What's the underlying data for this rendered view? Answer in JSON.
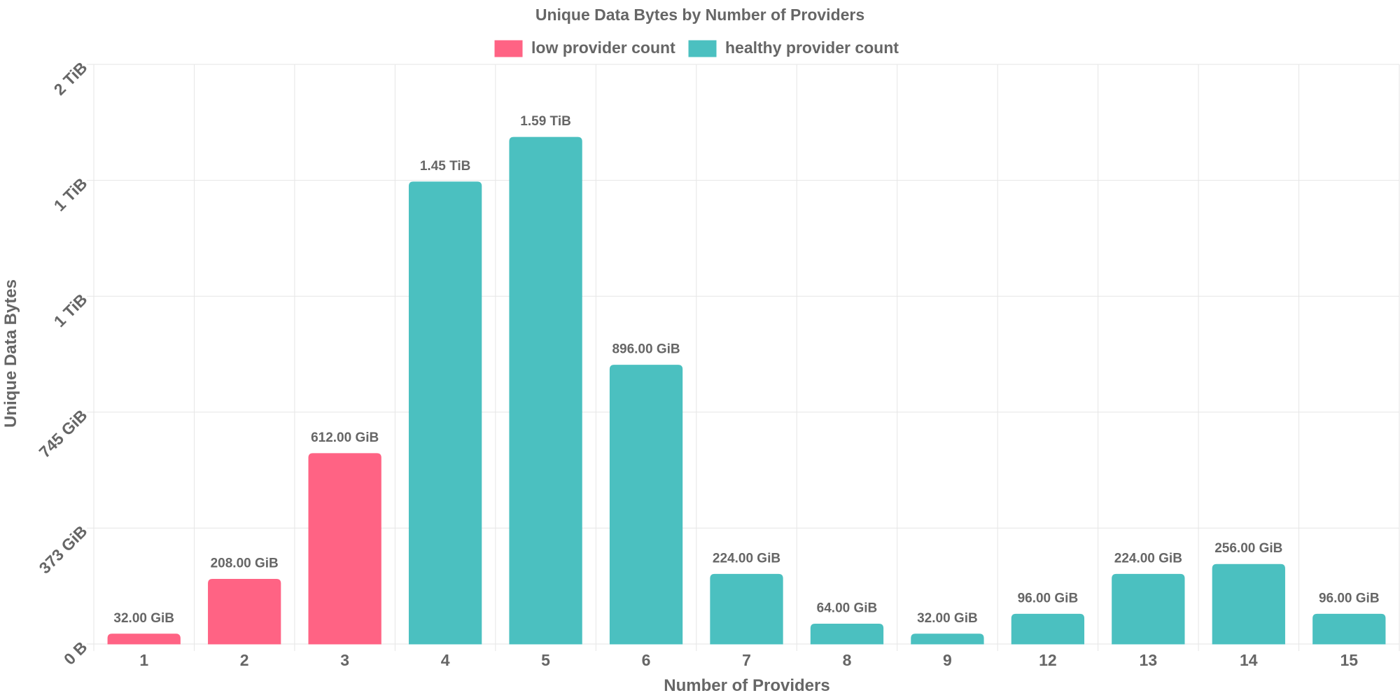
{
  "chart_data": {
    "type": "bar",
    "title": "Unique Data Bytes by Number of Providers",
    "xlabel": "Number of Providers",
    "ylabel": "Unique Data Bytes",
    "categories": [
      "1",
      "2",
      "3",
      "4",
      "5",
      "6",
      "7",
      "8",
      "9",
      "12",
      "13",
      "14",
      "15"
    ],
    "values_gib": [
      32,
      208,
      612,
      1484.8,
      1628.16,
      896,
      224,
      64,
      32,
      96,
      224,
      256,
      96
    ],
    "value_labels": [
      "32.00 GiB",
      "208.00 GiB",
      "612.00 GiB",
      "1.45 TiB",
      "1.59 TiB",
      "896.00 GiB",
      "224.00 GiB",
      "64.00 GiB",
      "32.00 GiB",
      "96.00 GiB",
      "224.00 GiB",
      "256.00 GiB",
      "96.00 GiB"
    ],
    "series_membership": [
      "low",
      "low",
      "low",
      "healthy",
      "healthy",
      "healthy",
      "healthy",
      "healthy",
      "healthy",
      "healthy",
      "healthy",
      "healthy",
      "healthy"
    ],
    "series": [
      {
        "key": "low",
        "name": "low provider count",
        "color": "#ff6384"
      },
      {
        "key": "healthy",
        "name": "healthy provider count",
        "color": "#4bc0c0"
      }
    ],
    "yticks_gib": [
      0,
      372.5,
      745,
      1117.5,
      1490,
      1862.5
    ],
    "ytick_labels": [
      "0 B",
      "373 GiB",
      "745 GiB",
      "1 TiB",
      "1 TiB",
      "2 TiB"
    ],
    "ylim_gib": [
      0,
      1862.5
    ],
    "grid": true,
    "legend_position": "top"
  }
}
